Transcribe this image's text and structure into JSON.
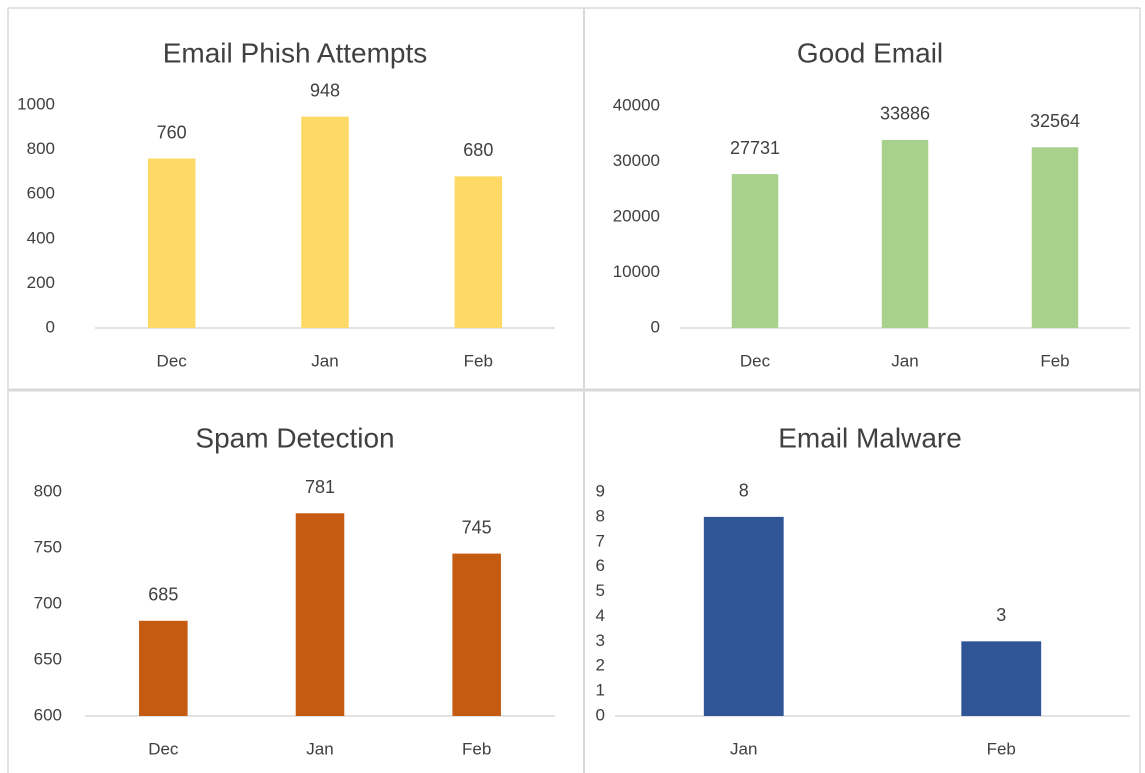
{
  "chart_data": [
    {
      "type": "bar",
      "title": "Email Phish Attempts",
      "categories": [
        "Dec",
        "Jan",
        "Feb"
      ],
      "values": [
        760,
        948,
        680
      ],
      "color": "#ffd966",
      "ylim": [
        0,
        1000
      ],
      "yticks": [
        0,
        200,
        400,
        600,
        800,
        1000
      ]
    },
    {
      "type": "bar",
      "title": "Good Email",
      "categories": [
        "Dec",
        "Jan",
        "Feb"
      ],
      "values": [
        27731,
        33886,
        32564
      ],
      "color": "#a9d18e",
      "ylim": [
        0,
        40000
      ],
      "yticks": [
        0,
        10000,
        20000,
        30000,
        40000
      ]
    },
    {
      "type": "bar",
      "title": "Spam Detection",
      "categories": [
        "Dec",
        "Jan",
        "Feb"
      ],
      "values": [
        685,
        781,
        745
      ],
      "color": "#c55a11",
      "ylim": [
        600,
        800
      ],
      "yticks": [
        600,
        650,
        700,
        750,
        800
      ]
    },
    {
      "type": "bar",
      "title": "Email Malware",
      "categories": [
        "Jan",
        "Feb"
      ],
      "values": [
        8,
        3
      ],
      "color": "#2f5597",
      "ylim": [
        0,
        9
      ],
      "yticks": [
        0,
        1,
        2,
        3,
        4,
        5,
        6,
        7,
        8,
        9
      ]
    }
  ]
}
